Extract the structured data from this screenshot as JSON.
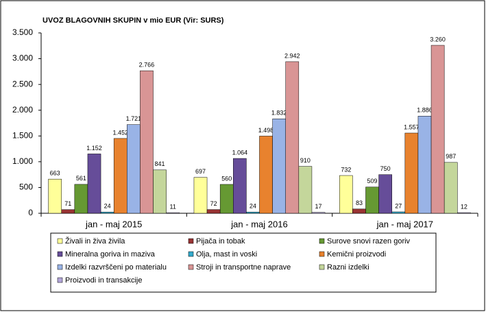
{
  "chart_data": {
    "type": "bar",
    "title": "UVOZ BLAGOVNIH SKUPIN v mio EUR (Vir: SURS)",
    "categories": [
      "jan - maj 2015",
      "jan - maj 2016",
      "jan - maj 2017"
    ],
    "series": [
      {
        "name": "Živali in živa živila",
        "color": "#ffff99",
        "values": [
          663,
          697,
          732
        ]
      },
      {
        "name": "Pijača in tobak",
        "color": "#993333",
        "values": [
          71,
          72,
          83
        ]
      },
      {
        "name": "Surove snovi razen goriv",
        "color": "#669933",
        "values": [
          561,
          560,
          509
        ]
      },
      {
        "name": "Mineralna goriva in maziva",
        "color": "#664d99",
        "values": [
          1152,
          1064,
          750
        ],
        "value_labels": [
          "1.152",
          "1.064",
          "750"
        ]
      },
      {
        "name": "Olja, mast in voski",
        "color": "#33aacc",
        "values": [
          24,
          24,
          27
        ]
      },
      {
        "name": "Kemični proizvodi",
        "color": "#e8822e",
        "values": [
          1452,
          1498,
          1557
        ],
        "value_labels": [
          "1.452",
          "1.498",
          "1.557"
        ]
      },
      {
        "name": "Izdelki razvrščeni po materialu",
        "color": "#99b3e6",
        "values": [
          1721,
          1832,
          1886
        ],
        "value_labels": [
          "1.721",
          "1.832",
          "1.886"
        ]
      },
      {
        "name": "Stroji in transportne naprave",
        "color": "#d99595",
        "values": [
          2766,
          2942,
          3260
        ],
        "value_labels": [
          "2.766",
          "2.942",
          "3.260"
        ]
      },
      {
        "name": "Razni izdelki",
        "color": "#c4d69b",
        "values": [
          841,
          910,
          987
        ]
      },
      {
        "name": "Proizvodi in transakcije",
        "color": "#b3a6d9",
        "values": [
          11,
          17,
          12
        ]
      }
    ],
    "ylim": [
      0,
      3500
    ],
    "yticks": [
      0,
      500,
      {
        "value": 1000,
        "label": "1.000"
      },
      {
        "value": 1500,
        "label": "1.500"
      },
      {
        "value": 2000,
        "label": "2.000"
      },
      {
        "value": 2500,
        "label": "2.500"
      },
      {
        "value": 3000,
        "label": "3.000"
      },
      {
        "value": 3500,
        "label": "3.500"
      }
    ],
    "grid": false
  }
}
